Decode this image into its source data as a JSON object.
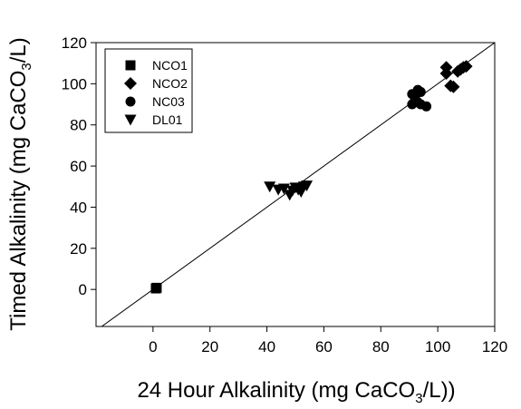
{
  "chart_data": {
    "type": "scatter",
    "title": "",
    "xlabel": {
      "pre": "24 Hour Alkalinity (mg CaCO",
      "sub": "3",
      "post": "/L))"
    },
    "ylabel": {
      "pre": "Timed Alkalinity (mg CaCO",
      "sub": "3",
      "post": "/L)"
    },
    "xlim": [
      -20,
      120
    ],
    "ylim": [
      -18,
      120
    ],
    "x_ticks": [
      0,
      20,
      40,
      60,
      80,
      100,
      120
    ],
    "y_ticks": [
      0,
      20,
      40,
      60,
      80,
      100,
      120
    ],
    "grid": false,
    "legend_position": "top-left",
    "reference_line": {
      "x": [
        -20,
        120
      ],
      "y": [
        -20,
        120
      ]
    },
    "series": [
      {
        "name": "NCO1",
        "marker": "square",
        "points": [
          [
            1,
            0.5
          ],
          [
            1.3,
            0.8
          ]
        ]
      },
      {
        "name": "NCO2",
        "marker": "diamond",
        "points": [
          [
            103,
            108
          ],
          [
            103,
            105
          ],
          [
            104.5,
            99
          ],
          [
            105.5,
            98.5
          ],
          [
            107,
            106
          ],
          [
            108,
            107
          ],
          [
            109,
            108
          ],
          [
            110,
            108.5
          ]
        ]
      },
      {
        "name": "NC03",
        "marker": "circle",
        "points": [
          [
            91,
            95
          ],
          [
            92,
            94
          ],
          [
            93,
            97
          ],
          [
            92,
            92
          ],
          [
            94,
            96
          ],
          [
            91,
            90
          ],
          [
            93,
            91
          ],
          [
            94,
            90
          ],
          [
            96,
            89
          ]
        ]
      },
      {
        "name": "DL01",
        "marker": "triangle-down",
        "points": [
          [
            41,
            50
          ],
          [
            44,
            48.5
          ],
          [
            46,
            49
          ],
          [
            48,
            46
          ],
          [
            49,
            48
          ],
          [
            50,
            49.5
          ],
          [
            51,
            48.5
          ],
          [
            52,
            47.5
          ],
          [
            53,
            50
          ],
          [
            54,
            50.5
          ]
        ]
      }
    ]
  }
}
